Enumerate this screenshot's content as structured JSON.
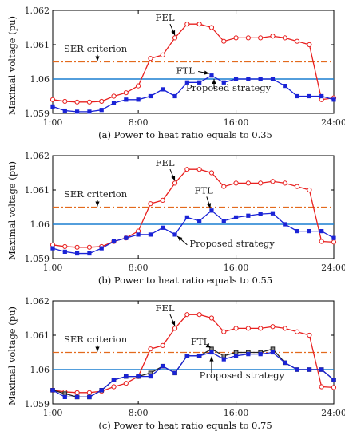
{
  "figure": {
    "ylabel": "Maximal voltage (pu)",
    "colors": {
      "fel": "#e8201f",
      "ftl": "#222222",
      "proposed": "#1a23d6",
      "ser": "#e36a1d",
      "ref": "#1a7fd0"
    }
  },
  "chart_data": [
    {
      "type": "line",
      "caption": "(a) Power to heat ratio equals to 0.35",
      "x_ticks": [
        "1:00",
        "8:00",
        "16:00",
        "24:00"
      ],
      "y_ticks": [
        "1.059",
        "1.06",
        "1.061",
        "1.062"
      ],
      "ylim": [
        1.059,
        1.062
      ],
      "xlim": [
        1,
        24
      ],
      "ser_criterion": 1.0605,
      "reference": 1.06,
      "annotations": {
        "fel": "FEL",
        "ftl": "FTL",
        "ser": "SER criterion",
        "proposed": "Proposed strategy"
      },
      "x": [
        1,
        2,
        3,
        4,
        5,
        6,
        7,
        8,
        9,
        10,
        11,
        12,
        13,
        14,
        15,
        16,
        17,
        18,
        19,
        20,
        21,
        22,
        23,
        24
      ],
      "series": [
        {
          "name": "FEL",
          "values": [
            1.0594,
            1.05935,
            1.05933,
            1.05933,
            1.05935,
            1.0595,
            1.0596,
            1.0598,
            1.0606,
            1.0607,
            1.0612,
            1.0616,
            1.0616,
            1.0615,
            1.0611,
            1.0612,
            1.0612,
            1.0612,
            1.06125,
            1.0612,
            1.0611,
            1.061,
            1.0594,
            1.05945
          ]
        },
        {
          "name": "Proposed strategy",
          "values": [
            1.0592,
            1.05908,
            1.05905,
            1.05905,
            1.0591,
            1.0593,
            1.0594,
            1.0594,
            1.0595,
            1.0597,
            1.0595,
            1.0599,
            1.0599,
            1.0601,
            1.0599,
            1.06,
            1.06,
            1.06,
            1.06,
            1.0598,
            1.0595,
            1.0595,
            1.0595,
            1.0594
          ]
        }
      ]
    },
    {
      "type": "line",
      "caption": "(b) Power to heat ratio equals to 0.55",
      "x_ticks": [
        "1:00",
        "8:00",
        "16:00",
        "24:00"
      ],
      "y_ticks": [
        "1.059",
        "1.06",
        "1.061",
        "1.062"
      ],
      "ylim": [
        1.059,
        1.062
      ],
      "xlim": [
        1,
        24
      ],
      "ser_criterion": 1.0605,
      "reference": 1.06,
      "annotations": {
        "fel": "FEL",
        "ftl": "FTL",
        "ser": "SER criterion",
        "proposed": "Proposed strategy"
      },
      "x": [
        1,
        2,
        3,
        4,
        5,
        6,
        7,
        8,
        9,
        10,
        11,
        12,
        13,
        14,
        15,
        16,
        17,
        18,
        19,
        20,
        21,
        22,
        23,
        24
      ],
      "series": [
        {
          "name": "FEL",
          "values": [
            1.0594,
            1.05935,
            1.05933,
            1.05933,
            1.05935,
            1.0595,
            1.0596,
            1.0598,
            1.0606,
            1.0607,
            1.0612,
            1.0616,
            1.0616,
            1.0615,
            1.0611,
            1.0612,
            1.0612,
            1.0612,
            1.06125,
            1.0612,
            1.0611,
            1.061,
            1.0595,
            1.05948
          ]
        },
        {
          "name": "Proposed strategy",
          "values": [
            1.0593,
            1.0592,
            1.05915,
            1.05915,
            1.0593,
            1.0595,
            1.0596,
            1.0597,
            1.0597,
            1.0599,
            1.0597,
            1.0602,
            1.0601,
            1.0604,
            1.0601,
            1.0602,
            1.06025,
            1.0603,
            1.06032,
            1.06,
            1.0598,
            1.0598,
            1.0598,
            1.0596
          ]
        }
      ]
    },
    {
      "type": "line",
      "caption": "(c) Power to heat ratio equals to 0.75",
      "x_ticks": [
        "1:00",
        "8:00",
        "16:00",
        "24:00"
      ],
      "y_ticks": [
        "1.059",
        "1.06",
        "1.061",
        "1.062"
      ],
      "ylim": [
        1.059,
        1.062
      ],
      "xlim": [
        1,
        24
      ],
      "ser_criterion": 1.0605,
      "reference": 1.06,
      "annotations": {
        "fel": "FEL",
        "ftl": "FTL",
        "ser": "SER criterion",
        "proposed": "Proposed strategy"
      },
      "x": [
        1,
        2,
        3,
        4,
        5,
        6,
        7,
        8,
        9,
        10,
        11,
        12,
        13,
        14,
        15,
        16,
        17,
        18,
        19,
        20,
        21,
        22,
        23,
        24
      ],
      "series": [
        {
          "name": "FEL",
          "values": [
            1.0594,
            1.05935,
            1.05933,
            1.05933,
            1.05937,
            1.0595,
            1.0596,
            1.0598,
            1.0606,
            1.0607,
            1.0612,
            1.0616,
            1.0616,
            1.0615,
            1.0611,
            1.0612,
            1.0612,
            1.0612,
            1.06125,
            1.0612,
            1.0611,
            1.061,
            1.0595,
            1.05948
          ]
        },
        {
          "name": "FTL",
          "values": [
            1.0594,
            1.0593,
            1.0592,
            1.0592,
            1.0594,
            1.0597,
            1.0598,
            1.0598,
            1.0599,
            1.0601,
            1.0599,
            1.0604,
            1.0604,
            1.0606,
            1.0604,
            1.0605,
            1.0605,
            1.0605,
            1.0606,
            1.0602,
            1.06,
            1.06,
            1.06,
            1.0597
          ]
        },
        {
          "name": "Proposed strategy",
          "values": [
            1.0594,
            1.0592,
            1.0592,
            1.0592,
            1.0594,
            1.0597,
            1.0598,
            1.0598,
            1.0598,
            1.0601,
            1.0599,
            1.0604,
            1.0604,
            1.0605,
            1.0603,
            1.0604,
            1.06045,
            1.06045,
            1.0605,
            1.0602,
            1.06,
            1.06,
            1.06,
            1.0597
          ]
        }
      ]
    }
  ]
}
